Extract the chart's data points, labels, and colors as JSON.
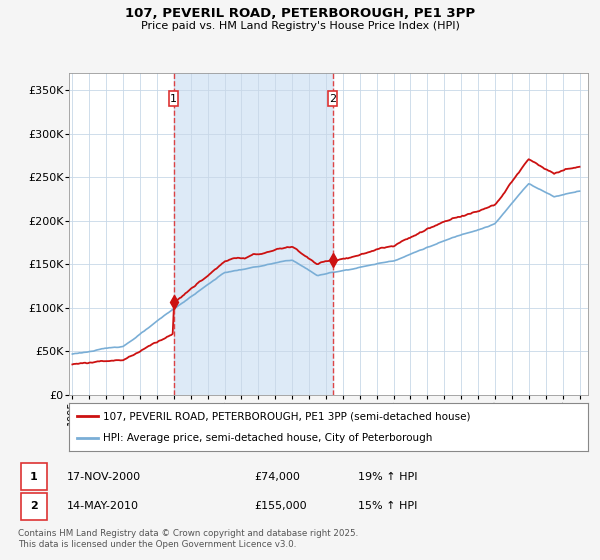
{
  "title": "107, PEVERIL ROAD, PETERBOROUGH, PE1 3PP",
  "subtitle": "Price paid vs. HM Land Registry's House Price Index (HPI)",
  "legend_line1": "107, PEVERIL ROAD, PETERBOROUGH, PE1 3PP (semi-detached house)",
  "legend_line2": "HPI: Average price, semi-detached house, City of Peterborough",
  "footnote": "Contains HM Land Registry data © Crown copyright and database right 2025.\nThis data is licensed under the Open Government Licence v3.0.",
  "sale1_label": "1",
  "sale1_date": "17-NOV-2000",
  "sale1_price": "£74,000",
  "sale1_hpi": "19% ↑ HPI",
  "sale1_year": 2001.0,
  "sale1_value": 74000,
  "sale2_label": "2",
  "sale2_date": "14-MAY-2010",
  "sale2_price": "£155,000",
  "sale2_hpi": "15% ↑ HPI",
  "sale2_year": 2010.4,
  "sale2_value": 155000,
  "hpi_color": "#7aaed6",
  "hpi_fill_color": "#ddeaf7",
  "price_color": "#cc1111",
  "vline_color": "#dd3333",
  "background_color": "#f5f5f5",
  "plot_bg_color": "#ffffff",
  "region_fill_color": "#ddeaf7",
  "ylim": [
    0,
    370000
  ],
  "xlim_start": 1994.8,
  "xlim_end": 2025.5,
  "yticks": [
    0,
    50000,
    100000,
    150000,
    200000,
    250000,
    300000,
    350000
  ],
  "ytick_labels": [
    "£0",
    "£50K",
    "£100K",
    "£150K",
    "£200K",
    "£250K",
    "£300K",
    "£350K"
  ],
  "xticks": [
    1995,
    1996,
    1997,
    1998,
    1999,
    2000,
    2001,
    2002,
    2003,
    2004,
    2005,
    2006,
    2007,
    2008,
    2009,
    2010,
    2011,
    2012,
    2013,
    2014,
    2015,
    2016,
    2017,
    2018,
    2019,
    2020,
    2021,
    2022,
    2023,
    2024,
    2025
  ]
}
